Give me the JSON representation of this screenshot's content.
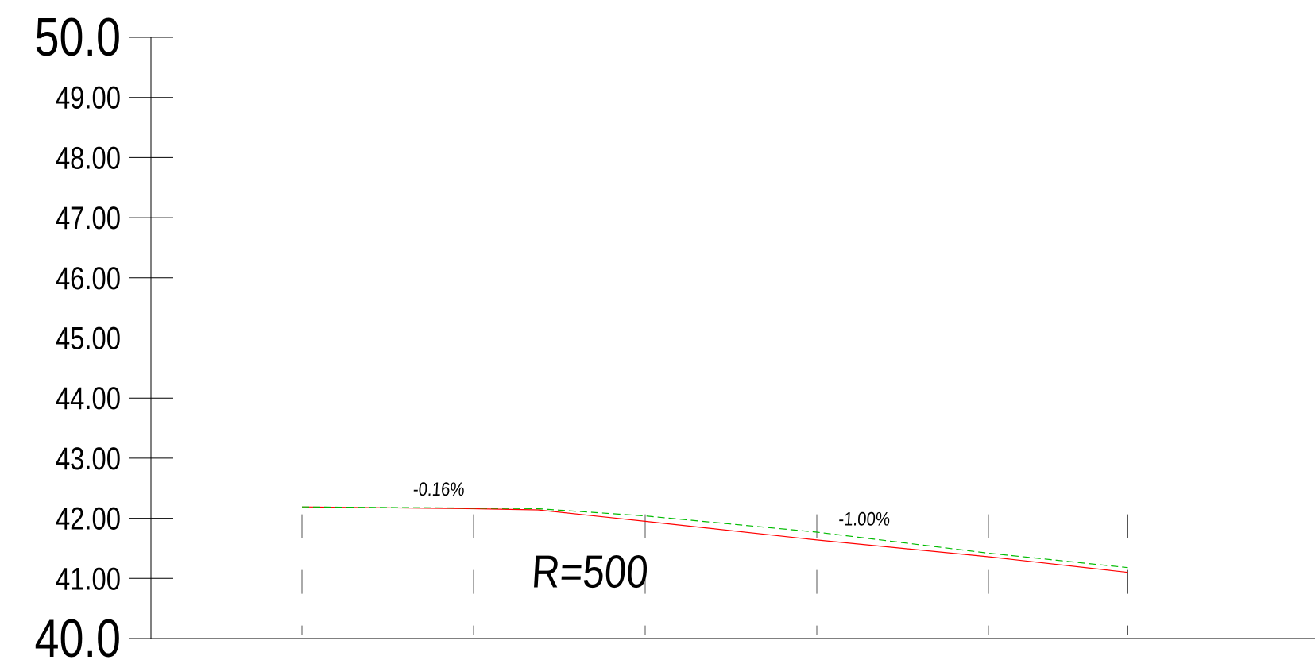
{
  "chart_data": {
    "type": "line",
    "title": "",
    "xlabel": "",
    "ylabel": "",
    "ylim": [
      40.0,
      50.0
    ],
    "y_ticks": [
      {
        "value": 50.0,
        "label": "50.0",
        "major": true
      },
      {
        "value": 49.0,
        "label": "49.00",
        "major": false
      },
      {
        "value": 48.0,
        "label": "48.00",
        "major": false
      },
      {
        "value": 47.0,
        "label": "47.00",
        "major": false
      },
      {
        "value": 46.0,
        "label": "46.00",
        "major": false
      },
      {
        "value": 45.0,
        "label": "45.00",
        "major": false
      },
      {
        "value": 44.0,
        "label": "44.00",
        "major": false
      },
      {
        "value": 43.0,
        "label": "43.00",
        "major": false
      },
      {
        "value": 42.0,
        "label": "42.00",
        "major": false
      },
      {
        "value": 41.0,
        "label": "41.00",
        "major": false
      },
      {
        "value": 40.0,
        "label": "40.0",
        "major": true
      }
    ],
    "x_range": [
      0,
      1545
    ],
    "stations": [
      0,
      240,
      480,
      720,
      960,
      1155
    ],
    "grid": false,
    "series": [
      {
        "name": "",
        "color": "#ff0000",
        "style": "solid",
        "x": [
          0,
          240,
          330,
          480,
          720,
          960,
          1155
        ],
        "y": [
          42.19,
          42.16,
          42.14,
          41.95,
          41.64,
          41.36,
          41.1
        ]
      },
      {
        "name": "",
        "color": "#00bb00",
        "style": "dashed",
        "x": [
          0,
          240,
          330,
          480,
          720,
          960,
          1155
        ],
        "y": [
          42.19,
          42.17,
          42.16,
          42.04,
          41.77,
          41.42,
          41.18
        ]
      }
    ],
    "annotations": [
      {
        "text": "-0.16%",
        "x": 155,
        "y": 42.38,
        "size": "small"
      },
      {
        "text": "-1.00%",
        "x": 750,
        "y": 41.88,
        "size": "small"
      },
      {
        "text": "R=500",
        "x": 320,
        "y": 40.85,
        "size": "large"
      }
    ]
  }
}
